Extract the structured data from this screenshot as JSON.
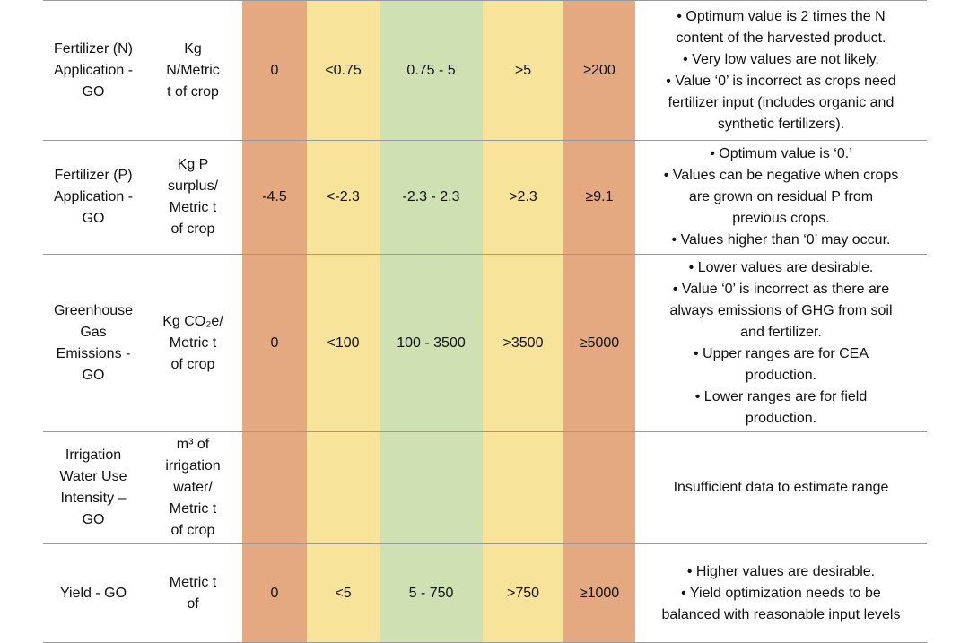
{
  "table": {
    "rows": [
      {
        "indicator": [
          "Fertilizer (N)",
          "Application -",
          "GO"
        ],
        "unit": [
          "Kg",
          "N/Metric",
          "t of crop"
        ],
        "ranges": [
          "0",
          "<0.75",
          "0.75 - 5",
          ">5",
          "≥200"
        ],
        "notes": [
          "• Optimum value is 2 times the N",
          "content of the harvested product.",
          "• Very low values are not likely.",
          "• Value ‘0’ is incorrect as crops need",
          "fertilizer input (includes organic and",
          "synthetic fertilizers)."
        ]
      },
      {
        "indicator": [
          "Fertilizer (P)",
          "Application -",
          "GO"
        ],
        "unit": [
          "Kg P",
          "surplus/",
          "Metric t",
          "of crop"
        ],
        "ranges": [
          "-4.5",
          "<-2.3",
          "-2.3 - 2.3",
          ">2.3",
          "≥9.1"
        ],
        "notes": [
          "• Optimum value is ‘0.’",
          "• Values can be negative when crops",
          "are grown on residual P from",
          "previous crops.",
          "• Values higher than ‘0’ may occur."
        ]
      },
      {
        "indicator": [
          "Greenhouse",
          "Gas",
          "Emissions -",
          "GO"
        ],
        "unit": [
          "Kg CO₂e/",
          "Metric t",
          "of crop"
        ],
        "ranges": [
          "0",
          "<100",
          "100 - 3500",
          ">3500",
          "≥5000"
        ],
        "notes": [
          "• Lower values are desirable.",
          "• Value ‘0’ is incorrect as there are",
          "always emissions of GHG from soil",
          "and fertilizer.",
          "• Upper ranges are for CEA",
          "production.",
          "• Lower ranges are for field",
          "production."
        ]
      },
      {
        "indicator": [
          "Irrigation",
          "Water Use",
          "Intensity –",
          "GO"
        ],
        "unit": [
          "m³ of",
          "irrigation",
          "water/",
          "Metric t",
          "of crop"
        ],
        "notes": [
          "Insufficient data to estimate range"
        ]
      },
      {
        "indicator": [
          "Yield - GO"
        ],
        "unit": [
          "Metric t",
          "of"
        ],
        "ranges": [
          "0",
          "<5",
          "5 - 750",
          ">750",
          "≥1000"
        ],
        "notes": [
          "• Higher values are desirable.",
          "• Yield optimization needs to be",
          "balanced with reasonable input levels"
        ]
      }
    ]
  }
}
